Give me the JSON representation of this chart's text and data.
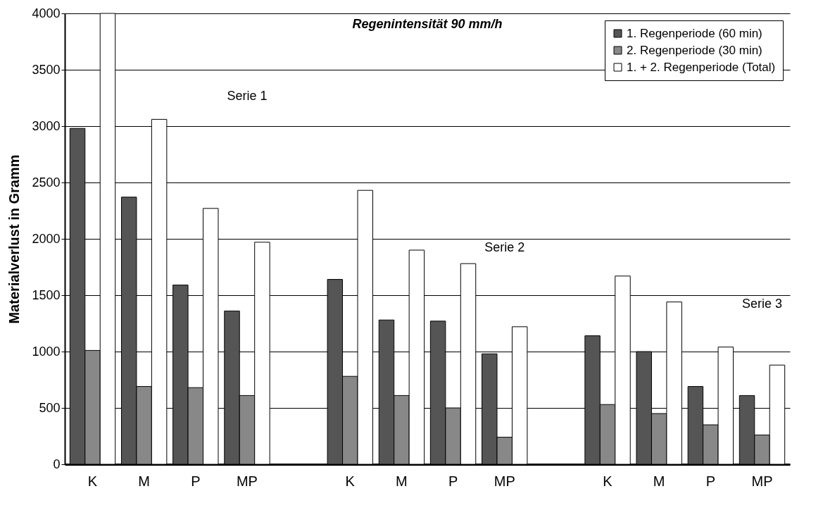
{
  "chart_data": {
    "type": "bar",
    "title": "Regenintensität 90 mm/h",
    "ylabel": "Materialverlust in Gramm",
    "categories": [
      "K",
      "M",
      "P",
      "MP",
      null,
      "K",
      "M",
      "P",
      "MP",
      null,
      "K",
      "M",
      "P",
      "MP"
    ],
    "series": [
      {
        "name": "1. Regenperiode (60 min)",
        "color": "#555555",
        "values": [
          2980,
          2370,
          1590,
          1360,
          null,
          1640,
          1280,
          1270,
          980,
          null,
          1140,
          1000,
          690,
          610
        ]
      },
      {
        "name": "2. Regenperiode (30 min)",
        "color": "#888888",
        "values": [
          1010,
          690,
          680,
          610,
          null,
          780,
          610,
          500,
          240,
          null,
          530,
          450,
          350,
          260
        ]
      },
      {
        "name": "1. + 2. Regenperiode (Total)",
        "color": "#ffffff",
        "values": [
          4000,
          3060,
          2270,
          1970,
          null,
          2430,
          1900,
          1780,
          1220,
          null,
          1670,
          1440,
          1040,
          880
        ]
      }
    ],
    "annotations": [
      "Serie 1",
      "Serie 2",
      "Serie 3"
    ],
    "ylim": [
      0,
      4000
    ],
    "yticks": [
      0,
      500,
      1000,
      1500,
      2000,
      2500,
      3000,
      3500,
      4000
    ],
    "grid": "y",
    "legend": "top right"
  }
}
